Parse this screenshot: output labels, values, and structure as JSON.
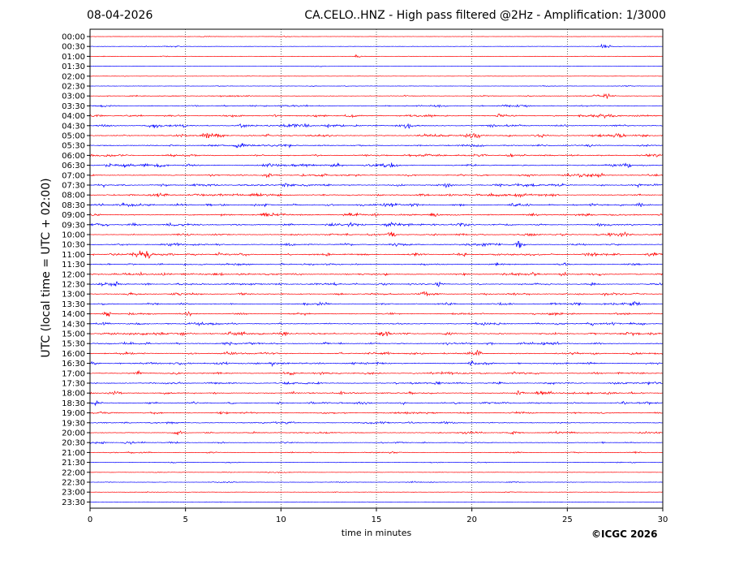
{
  "header": {
    "date": "08-04-2026",
    "title": "CA.CELO..HNZ - High pass filtered @2Hz - Amplification: 1/3000"
  },
  "footer": {
    "copyright": "©ICGC 2026"
  },
  "chart_data": {
    "type": "line",
    "title": "CA.CELO..HNZ - High pass filtered @2Hz - Amplification: 1/3000",
    "xlabel": "time in minutes",
    "ylabel": "UTC (local time = UTC + 02:00)",
    "xlim": [
      0,
      30
    ],
    "x_ticks": [
      "0",
      "5",
      "10",
      "15",
      "20",
      "25",
      "30"
    ],
    "x_tick_values": [
      0,
      5,
      10,
      15,
      20,
      25,
      30
    ],
    "y_ticks": [
      "00:00",
      "00:30",
      "01:00",
      "01:30",
      "02:00",
      "02:30",
      "03:00",
      "03:30",
      "04:00",
      "04:30",
      "05:00",
      "05:30",
      "06:00",
      "06:30",
      "07:00",
      "07:30",
      "08:00",
      "08:30",
      "09:00",
      "09:30",
      "10:00",
      "10:30",
      "11:00",
      "11:30",
      "12:00",
      "12:30",
      "13:00",
      "13:30",
      "14:00",
      "14:30",
      "15:00",
      "15:30",
      "16:00",
      "16:30",
      "17:00",
      "17:30",
      "18:00",
      "18:30",
      "19:00",
      "19:30",
      "20:00",
      "20:30",
      "21:00",
      "21:30",
      "22:00",
      "22:30",
      "23:00",
      "23:30"
    ],
    "grid": "vertical dotted at x ticks",
    "series_colors": [
      "#ff0000",
      "#0000ff"
    ],
    "trace_activity": [
      0.05,
      0.1,
      0.08,
      0.05,
      0.05,
      0.1,
      0.3,
      0.5,
      0.6,
      0.7,
      0.7,
      0.6,
      0.6,
      0.7,
      0.6,
      0.7,
      0.7,
      0.7,
      0.7,
      0.7,
      0.6,
      0.6,
      0.7,
      0.6,
      0.7,
      0.6,
      0.6,
      0.5,
      0.5,
      0.6,
      0.7,
      0.6,
      0.6,
      0.7,
      0.6,
      0.6,
      0.6,
      0.6,
      0.5,
      0.45,
      0.45,
      0.35,
      0.3,
      0.2,
      0.1,
      0.2,
      0.1,
      0.05
    ],
    "events": [
      {
        "row": 1,
        "minute": 27.0,
        "amp": 2.0
      },
      {
        "row": 2,
        "minute": 14.0,
        "amp": 0.7
      },
      {
        "row": 6,
        "minute": 27.0,
        "amp": 1.2
      },
      {
        "row": 8,
        "minute": 21.5,
        "amp": 1.3
      },
      {
        "row": 9,
        "minute": 8.0,
        "amp": 1.5
      },
      {
        "row": 10,
        "minute": 27.8,
        "amp": 1.8
      },
      {
        "row": 13,
        "minute": 13.0,
        "amp": 1.5
      },
      {
        "row": 17,
        "minute": 28.8,
        "amp": 1.6
      },
      {
        "row": 19,
        "minute": 16.2,
        "amp": 1.2
      },
      {
        "row": 20,
        "minute": 15.8,
        "amp": 2.2
      },
      {
        "row": 21,
        "minute": 22.5,
        "amp": 3.0
      },
      {
        "row": 22,
        "minute": 19.5,
        "amp": 1.6
      },
      {
        "row": 22,
        "minute": 3.1,
        "amp": 1.2
      },
      {
        "row": 22,
        "minute": 12.4,
        "amp": 1.2
      },
      {
        "row": 24,
        "minute": 23.2,
        "amp": 1.2
      },
      {
        "row": 24,
        "minute": 24.8,
        "amp": 1.4
      },
      {
        "row": 25,
        "minute": 1.3,
        "amp": 1.6
      },
      {
        "row": 25,
        "minute": 18.3,
        "amp": 2.0
      },
      {
        "row": 28,
        "minute": 0.9,
        "amp": 1.5
      },
      {
        "row": 30,
        "minute": 4.8,
        "amp": 1.2
      },
      {
        "row": 30,
        "minute": 7.3,
        "amp": 1.2
      },
      {
        "row": 30,
        "minute": 15.5,
        "amp": 1.2
      },
      {
        "row": 30,
        "minute": 29.5,
        "amp": 1.1
      },
      {
        "row": 32,
        "minute": 20.3,
        "amp": 2.0
      },
      {
        "row": 33,
        "minute": 20.0,
        "amp": 1.4
      },
      {
        "row": 36,
        "minute": 22.5,
        "amp": 1.0
      },
      {
        "row": 37,
        "minute": 0.2,
        "amp": 1.3
      },
      {
        "row": 40,
        "minute": 4.6,
        "amp": 1.1
      },
      {
        "row": 41,
        "minute": 2.0,
        "amp": 1.1
      },
      {
        "row": 41,
        "minute": 0.6,
        "amp": 0.9
      }
    ]
  }
}
